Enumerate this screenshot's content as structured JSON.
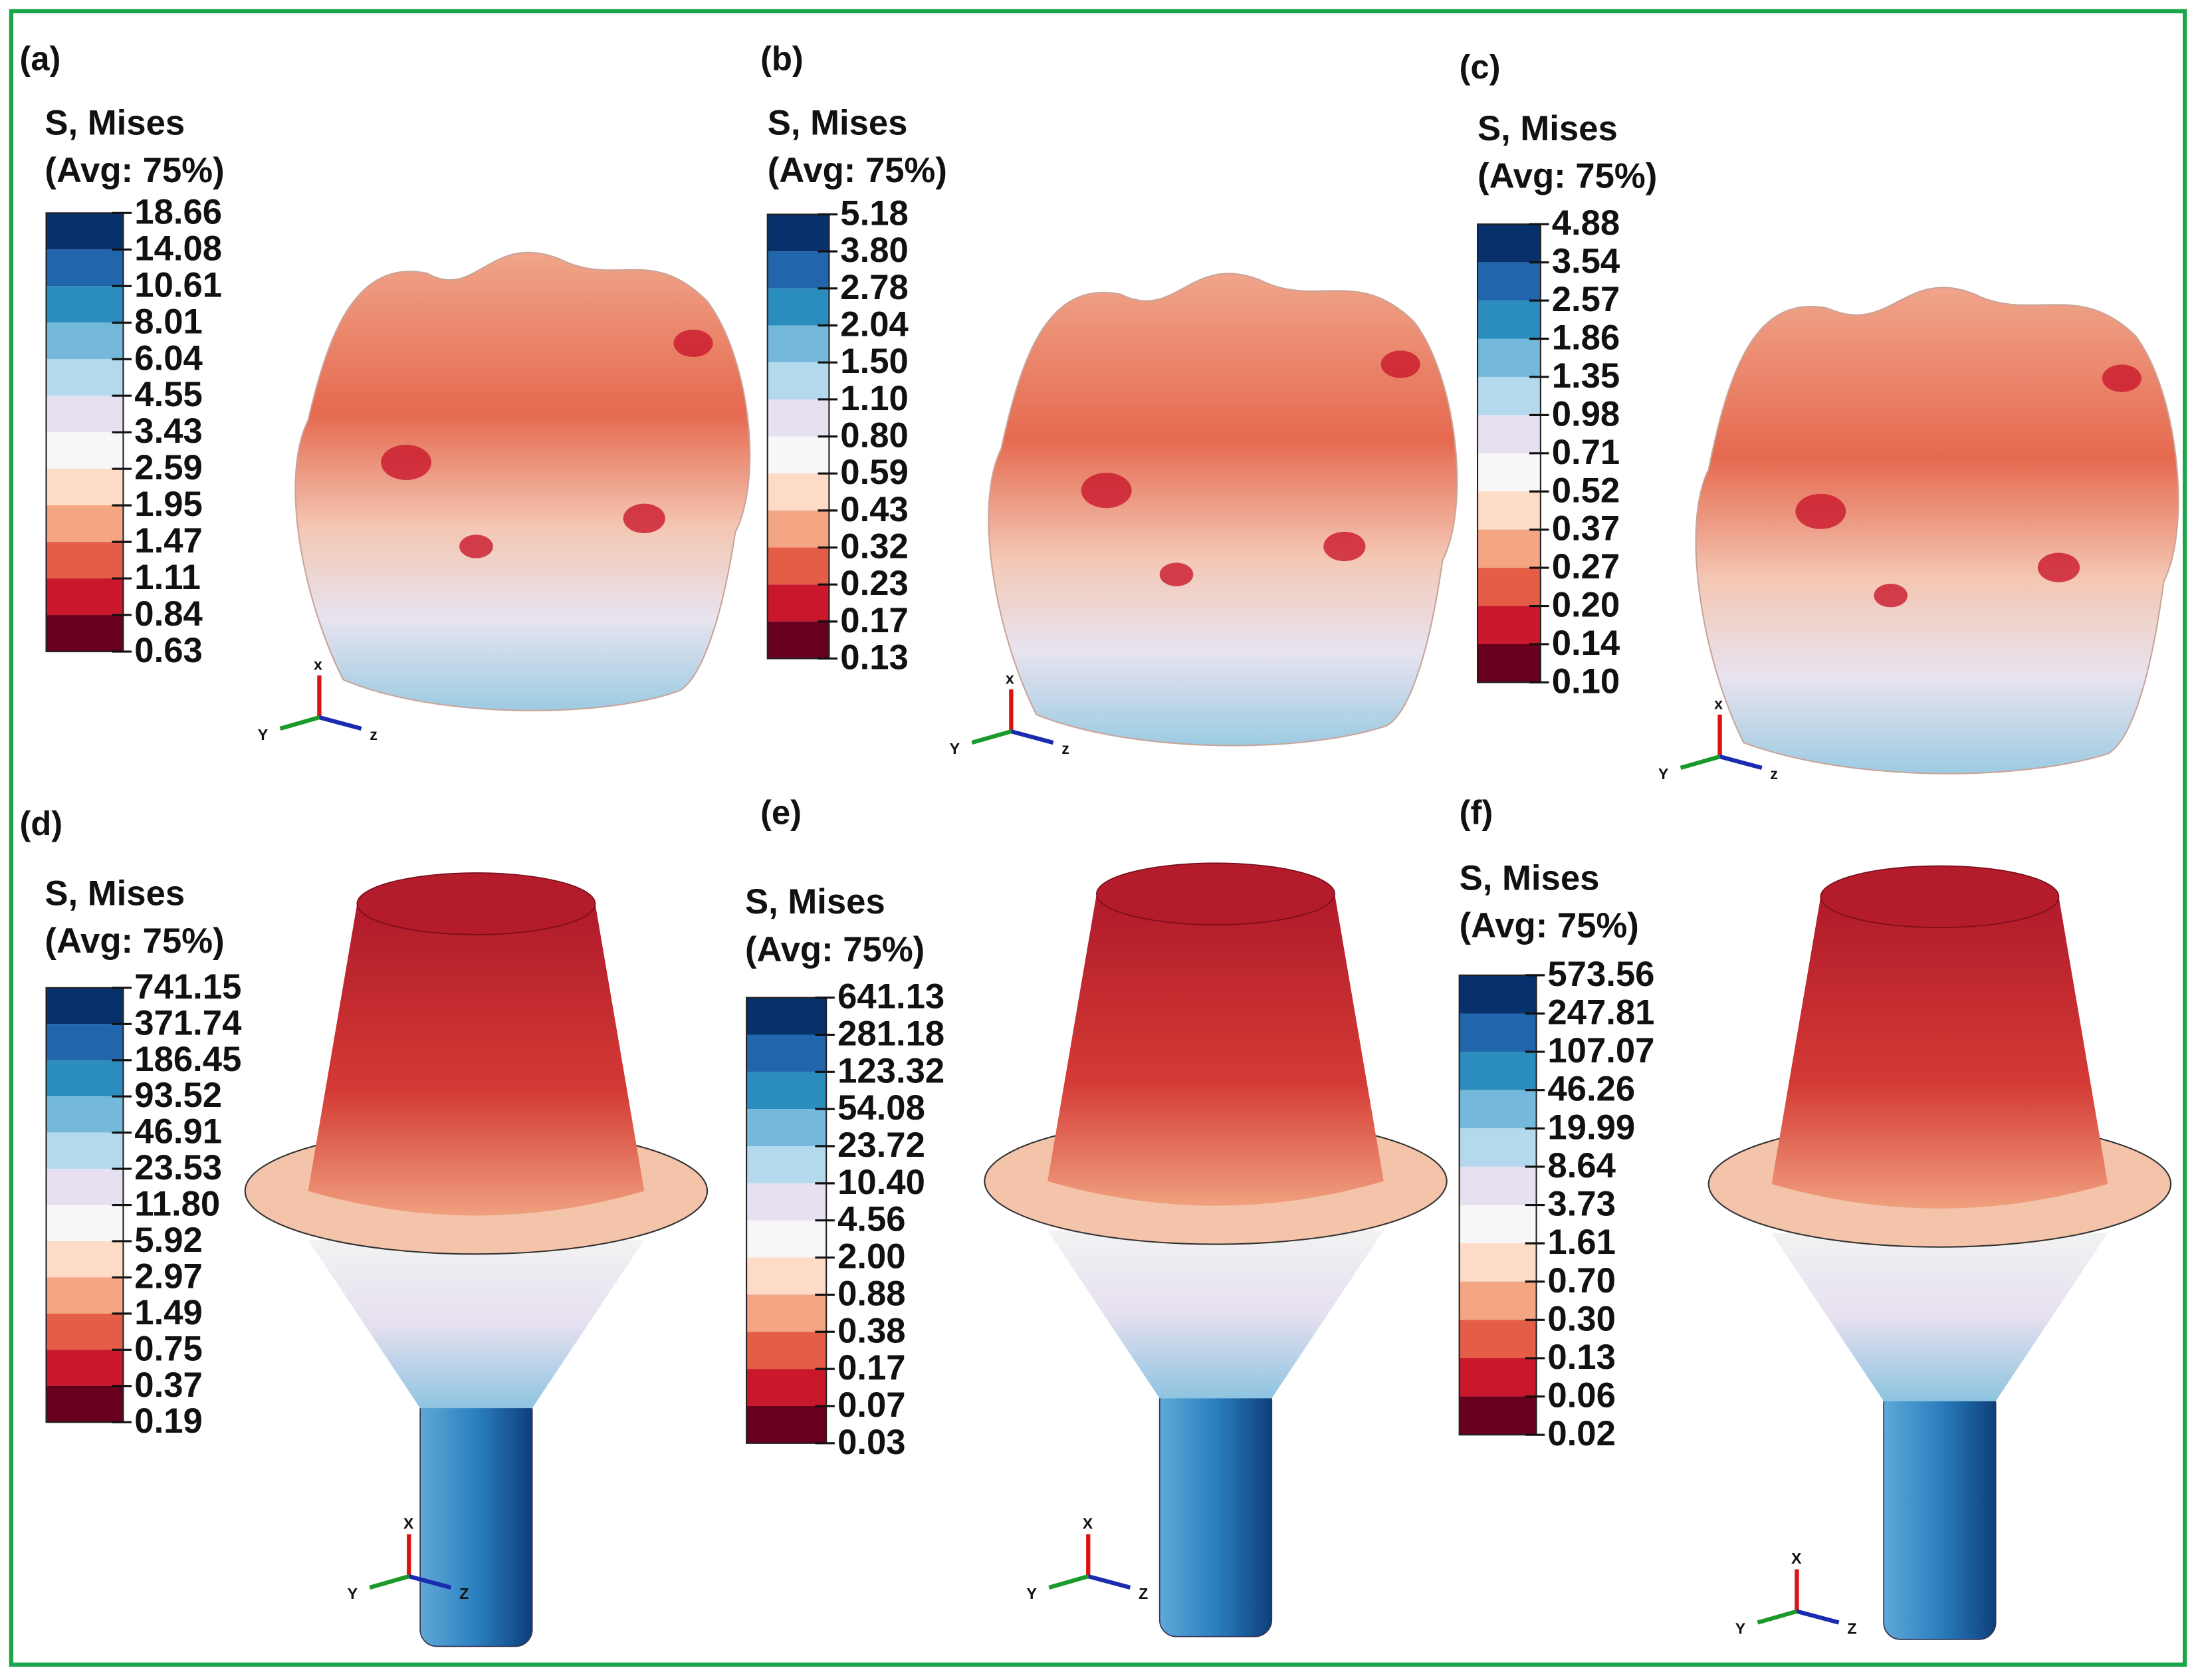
{
  "panels": [
    {
      "label": "(a)",
      "legend_title": [
        "S, Mises",
        "(Avg: 75%)"
      ],
      "legend_values": [
        "18.66",
        "14.08",
        "10.61",
        "8.01",
        "6.04",
        "4.55",
        "3.43",
        "2.59",
        "1.95",
        "1.47",
        "1.11",
        "0.84",
        "0.63"
      ],
      "triad": [
        "x",
        "Y",
        "z"
      ]
    },
    {
      "label": "(b)",
      "legend_title": [
        "S, Mises",
        "(Avg: 75%)"
      ],
      "legend_values": [
        "5.18",
        "3.80",
        "2.78",
        "2.04",
        "1.50",
        "1.10",
        "0.80",
        "0.59",
        "0.43",
        "0.32",
        "0.23",
        "0.17",
        "0.13"
      ],
      "triad": [
        "x",
        "Y",
        "z"
      ]
    },
    {
      "label": "(c)",
      "legend_title": [
        "S, Mises",
        "(Avg: 75%)"
      ],
      "legend_values": [
        "4.88",
        "3.54",
        "2.57",
        "1.86",
        "1.35",
        "0.98",
        "0.71",
        "0.52",
        "0.37",
        "0.27",
        "0.20",
        "0.14",
        "0.10"
      ],
      "triad": [
        "x",
        "Y",
        "z"
      ]
    },
    {
      "label": "(d)",
      "legend_title": [
        "S, Mises",
        "(Avg: 75%)"
      ],
      "legend_values": [
        "741.15",
        "371.74",
        "186.45",
        "93.52",
        "46.91",
        "23.53",
        "11.80",
        "5.92",
        "2.97",
        "1.49",
        "0.75",
        "0.37",
        "0.19"
      ],
      "triad": [
        "X",
        "Y",
        "Z"
      ]
    },
    {
      "label": "(e)",
      "legend_title": [
        "S, Mises",
        "(Avg: 75%)"
      ],
      "legend_values": [
        "641.13",
        "281.18",
        "123.32",
        "54.08",
        "23.72",
        "10.40",
        "4.56",
        "2.00",
        "0.88",
        "0.38",
        "0.17",
        "0.07",
        "0.03"
      ],
      "triad": [
        "X",
        "Y",
        "Z"
      ]
    },
    {
      "label": "(f)",
      "legend_title": [
        "S, Mises",
        "(Avg: 75%)"
      ],
      "legend_values": [
        "573.56",
        "247.81",
        "107.07",
        "46.26",
        "19.99",
        "8.64",
        "3.73",
        "1.61",
        "0.70",
        "0.30",
        "0.13",
        "0.06",
        "0.02"
      ],
      "triad": [
        "X",
        "Y",
        "Z"
      ]
    }
  ]
}
